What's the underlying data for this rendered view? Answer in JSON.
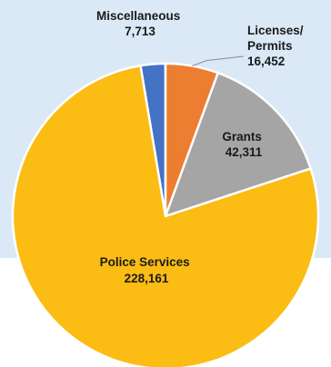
{
  "chart_data": {
    "type": "pie",
    "categories": [
      "Miscellaneous",
      "Licenses/ Permits",
      "Grants",
      "Police Services"
    ],
    "values": [
      7713,
      16452,
      42311,
      228161
    ],
    "value_labels": [
      "7,713",
      "16,452",
      "42,311",
      "228,161"
    ],
    "label_lines": [
      [
        "Miscellaneous",
        "7,713"
      ],
      [
        "Licenses/",
        "Permits",
        "16,452"
      ],
      [
        "Grants",
        "42,311"
      ],
      [
        "Police Services",
        "228,161"
      ]
    ],
    "colors": [
      "#4472c4",
      "#ed7d31",
      "#a5a5a5",
      "#fbbc13"
    ],
    "background_panel_color": "#dbe9f6",
    "legend": "none",
    "title": ""
  }
}
